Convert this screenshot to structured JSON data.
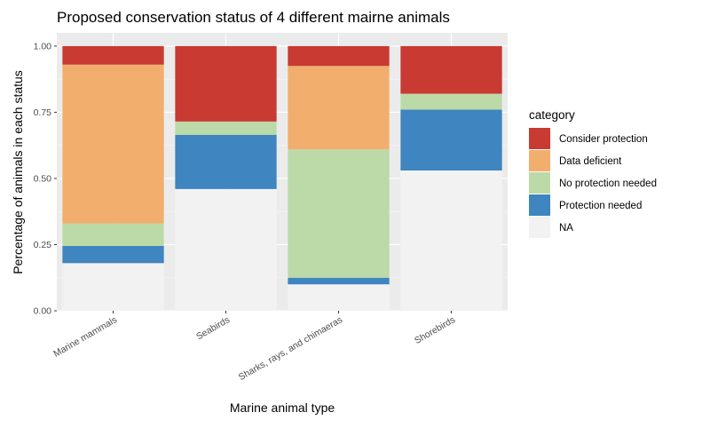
{
  "chart_data": {
    "type": "bar",
    "stacked": true,
    "title": "Proposed conservation status of 4 different mairne animals",
    "xlabel": "Marine animal type",
    "ylabel": "Percentage of animals in each status",
    "ylim": [
      0,
      1.05
    ],
    "y_ticks": [
      0.0,
      0.25,
      0.5,
      0.75,
      1.0
    ],
    "y_tick_labels": [
      "0.00",
      "0.25",
      "0.50",
      "0.75",
      "1.00"
    ],
    "categories": [
      "Marine mammals",
      "Seabirds",
      "Sharks, rays, and chimaeras",
      "Shorebirds"
    ],
    "legend": {
      "title": "category",
      "position": "right",
      "entries": [
        {
          "name": "Consider protection",
          "color": "#C83A32"
        },
        {
          "name": "Data deficient",
          "color": "#F1AE6D"
        },
        {
          "name": "No protection needed",
          "color": "#BCD9A8"
        },
        {
          "name": "Protection needed",
          "color": "#3F85BF"
        },
        {
          "name": "NA",
          "color": "#F2F2F2"
        }
      ]
    },
    "series": [
      {
        "name": "NA",
        "values": [
          0.18,
          0.46,
          0.1,
          0.53
        ]
      },
      {
        "name": "Protection needed",
        "values": [
          0.065,
          0.205,
          0.025,
          0.23
        ]
      },
      {
        "name": "No protection needed",
        "values": [
          0.085,
          0.05,
          0.485,
          0.06
        ]
      },
      {
        "name": "Data deficient",
        "values": [
          0.6,
          0.0,
          0.315,
          0.0
        ]
      },
      {
        "name": "Consider protection",
        "values": [
          0.07,
          0.285,
          0.075,
          0.18
        ]
      }
    ],
    "panel_background": "#EBEBEB",
    "grid": true
  }
}
